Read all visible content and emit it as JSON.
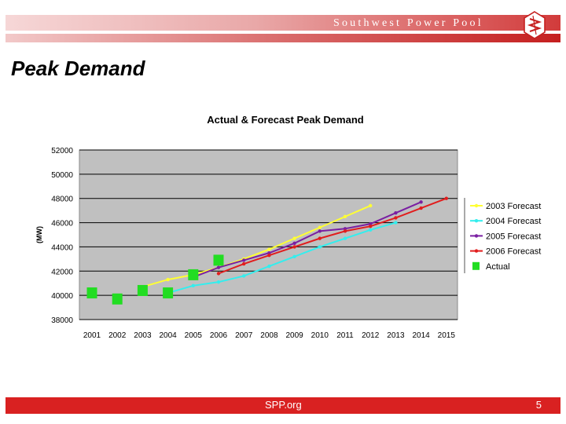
{
  "header": {
    "brand": "Southwest Power Pool"
  },
  "slide": {
    "title": "Peak Demand"
  },
  "footer": {
    "site": "SPP.org",
    "page_number": "5"
  },
  "chart_data": {
    "type": "line",
    "title": "Actual & Forecast Peak Demand",
    "ylabel": "(MW)",
    "xlabel": "",
    "ylim": [
      38000,
      52000
    ],
    "yticks": [
      38000,
      40000,
      42000,
      44000,
      46000,
      48000,
      50000,
      52000
    ],
    "categories": [
      "2001",
      "2002",
      "2003",
      "2004",
      "2005",
      "2006",
      "2007",
      "2008",
      "2009",
      "2010",
      "2011",
      "2012",
      "2013",
      "2014",
      "2015"
    ],
    "grid": true,
    "legend_position": "right",
    "plot_background": "#c0c0c0",
    "series": [
      {
        "name": "2003 Forecast",
        "color": "#ffff33",
        "marker": "dot",
        "x": [
          "2003",
          "2004",
          "2005",
          "2006",
          "2007",
          "2008",
          "2009",
          "2010",
          "2011",
          "2012"
        ],
        "values": [
          40700,
          41300,
          41700,
          42300,
          43000,
          43800,
          44700,
          45600,
          46500,
          47400
        ]
      },
      {
        "name": "2004 Forecast",
        "color": "#33eeee",
        "marker": "dot",
        "x": [
          "2004",
          "2005",
          "2006",
          "2007",
          "2008",
          "2009",
          "2010",
          "2011",
          "2012",
          "2013"
        ],
        "values": [
          40200,
          40800,
          41100,
          41600,
          42400,
          43200,
          44000,
          44700,
          45400,
          46000
        ]
      },
      {
        "name": "2005 Forecast",
        "color": "#7a1fa2",
        "marker": "dot",
        "x": [
          "2005",
          "2006",
          "2007",
          "2008",
          "2009",
          "2010",
          "2011",
          "2012",
          "2013",
          "2014"
        ],
        "values": [
          41500,
          42300,
          42900,
          43500,
          44300,
          45300,
          45500,
          45900,
          46800,
          47700
        ]
      },
      {
        "name": "2006 Forecast",
        "color": "#e11d1d",
        "marker": "dot",
        "x": [
          "2006",
          "2007",
          "2008",
          "2009",
          "2010",
          "2011",
          "2012",
          "2013",
          "2014",
          "2015"
        ],
        "values": [
          41800,
          42600,
          43300,
          44000,
          44700,
          45300,
          45700,
          46400,
          47200,
          48000
        ]
      },
      {
        "name": "Actual",
        "color": "#22dd22",
        "marker": "square",
        "line": false,
        "x": [
          "2001",
          "2002",
          "2003",
          "2004",
          "2005",
          "2006"
        ],
        "values": [
          40200,
          39700,
          40400,
          40200,
          41700,
          42900
        ]
      }
    ]
  }
}
